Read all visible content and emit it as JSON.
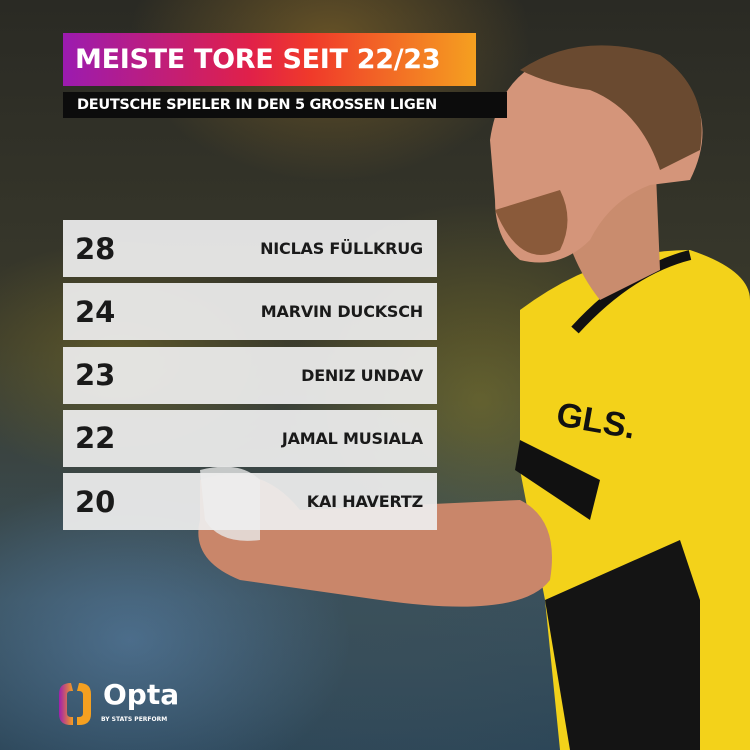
{
  "header": {
    "title": "MEISTE TORE SEIT 22/23",
    "subtitle": "DEUTSCHE SPIELER IN DEN 5 GROSSEN LIGEN"
  },
  "ranking": [
    {
      "goals": "28",
      "player": "NICLAS FÜLLKRUG"
    },
    {
      "goals": "24",
      "player": "MARVIN DUCKSCH"
    },
    {
      "goals": "23",
      "player": "DENIZ UNDAV"
    },
    {
      "goals": "22",
      "player": "JAMAL MUSIALA"
    },
    {
      "goals": "20",
      "player": "KAI HAVERTZ"
    }
  ],
  "branding": {
    "logo": "Opta",
    "tagline": "BY STATS PERFORM",
    "jersey_sponsor": "GLS."
  },
  "colors": {
    "title_gradient_start": "#9b1bb0",
    "title_gradient_mid": "#e0204a",
    "title_gradient_end": "#f5a020",
    "jersey": "#f3d21a"
  }
}
